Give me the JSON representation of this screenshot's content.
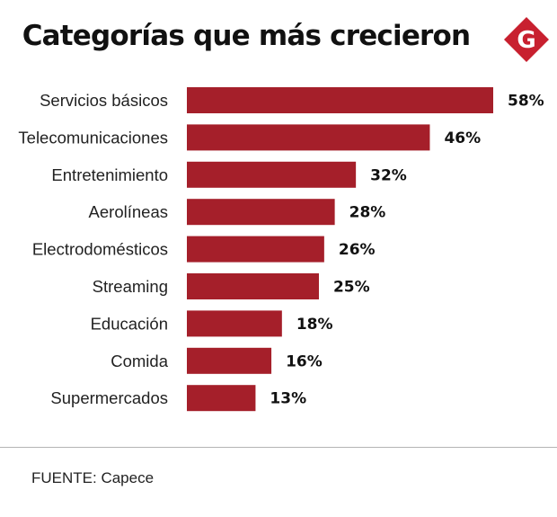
{
  "title": "Categorías que más crecieron",
  "logo": {
    "icon": "g-logo-icon",
    "letter": "G",
    "color": "#c8202f"
  },
  "source": "FUENTE: Capece",
  "colors": {
    "bar": "#a51f2a"
  },
  "chart_data": {
    "type": "bar",
    "orientation": "horizontal",
    "title": "Categorías que más crecieron",
    "xlabel": "",
    "ylabel": "",
    "xlim": [
      0,
      58
    ],
    "categories": [
      "Servicios básicos",
      "Telecomunicaciones",
      "Entretenimiento",
      "Aerolíneas",
      "Electrodomésticos",
      "Streaming",
      "Educación",
      "Comida",
      "Supermercados"
    ],
    "values": [
      58,
      46,
      32,
      28,
      26,
      25,
      18,
      16,
      13
    ],
    "value_labels": [
      "58%",
      "46%",
      "32%",
      "28%",
      "26%",
      "25%",
      "18%",
      "16%",
      "13%"
    ],
    "grid": false,
    "legend": "none"
  }
}
